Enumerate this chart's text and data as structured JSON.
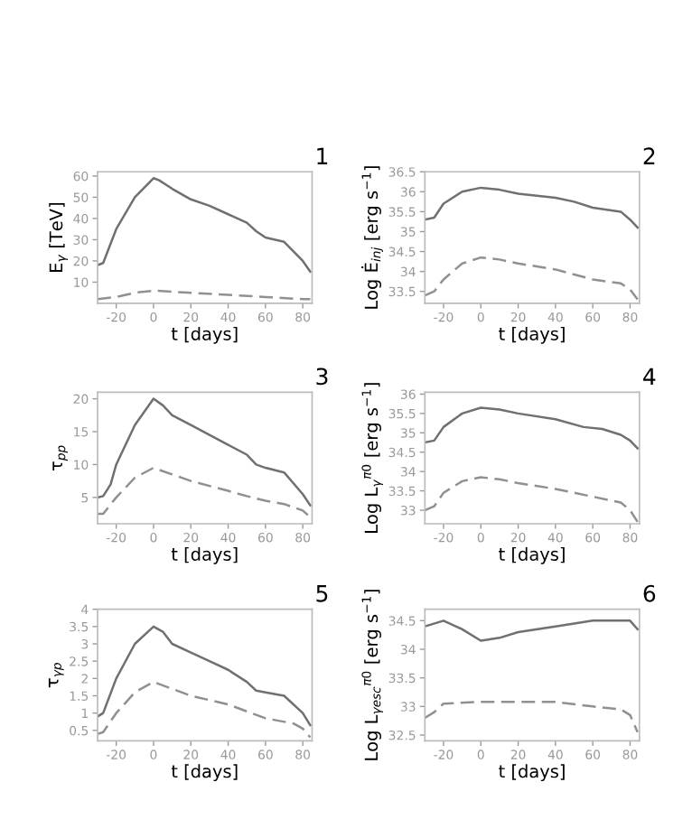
{
  "chart_data": [
    {
      "type": "line",
      "title": "1",
      "xlabel": "t [days]",
      "ylabel": "E$_{γ}$ [TeV]",
      "xlim": [
        -30,
        85
      ],
      "xticks": [
        -20,
        0,
        20,
        40,
        60,
        80
      ],
      "ylim": [
        0,
        62
      ],
      "yticks": [
        10,
        20,
        30,
        40,
        50,
        60
      ],
      "grid": false,
      "legend": false,
      "series": [
        {
          "color": "#707070",
          "line_style": "solid",
          "x": [
            -30,
            -27,
            -20,
            -10,
            0,
            3,
            10,
            20,
            30,
            40,
            50,
            55,
            60,
            70,
            80,
            84
          ],
          "values": [
            18,
            19,
            35,
            50,
            59,
            58,
            54,
            49,
            46,
            42,
            38,
            34,
            31,
            29,
            20,
            15
          ]
        },
        {
          "color": "#909090",
          "line_style": "dashed",
          "x": [
            -30,
            -20,
            -10,
            0,
            20,
            40,
            60,
            80,
            84
          ],
          "values": [
            2,
            3,
            5,
            6,
            5,
            4,
            3,
            2,
            2
          ]
        }
      ]
    },
    {
      "type": "line",
      "title": "2",
      "xlabel": "t [days]",
      "ylabel": "Log Ė$_{inj}$ [erg s$^{−1}$]",
      "xlim": [
        -30,
        85
      ],
      "xticks": [
        -20,
        0,
        20,
        40,
        60,
        80
      ],
      "ylim": [
        33.2,
        36.5
      ],
      "yticks": [
        33.5,
        34,
        34.5,
        35,
        35.5,
        36,
        36.5
      ],
      "grid": false,
      "legend": false,
      "series": [
        {
          "color": "#707070",
          "line_style": "solid",
          "x": [
            -30,
            -25,
            -20,
            -10,
            0,
            10,
            20,
            40,
            50,
            60,
            75,
            80,
            84
          ],
          "values": [
            35.3,
            35.35,
            35.7,
            36.0,
            36.1,
            36.05,
            35.95,
            35.85,
            35.75,
            35.6,
            35.5,
            35.3,
            35.1
          ]
        },
        {
          "color": "#909090",
          "line_style": "dashed",
          "x": [
            -30,
            -25,
            -20,
            -10,
            0,
            10,
            20,
            40,
            60,
            75,
            80,
            84
          ],
          "values": [
            33.4,
            33.5,
            33.8,
            34.2,
            34.35,
            34.3,
            34.2,
            34.05,
            33.8,
            33.7,
            33.55,
            33.3
          ]
        }
      ]
    },
    {
      "type": "line",
      "title": "3",
      "xlabel": "t [days]",
      "ylabel": "τ$_{pp}$",
      "xlim": [
        -30,
        85
      ],
      "xticks": [
        -20,
        0,
        20,
        40,
        60,
        80
      ],
      "ylim": [
        1,
        21
      ],
      "yticks": [
        5,
        10,
        15,
        20
      ],
      "grid": false,
      "legend": false,
      "series": [
        {
          "color": "#707070",
          "line_style": "solid",
          "x": [
            -30,
            -27,
            -23,
            -20,
            -10,
            0,
            5,
            10,
            20,
            30,
            40,
            50,
            55,
            60,
            70,
            80,
            84
          ],
          "values": [
            5,
            5.2,
            7,
            10,
            16,
            20,
            19,
            17.5,
            16,
            14.5,
            13,
            11.5,
            10,
            9.5,
            8.8,
            5.5,
            3.8
          ]
        },
        {
          "color": "#909090",
          "line_style": "dashed",
          "x": [
            -30,
            -27,
            -20,
            -10,
            0,
            10,
            20,
            40,
            50,
            60,
            70,
            80,
            84
          ],
          "values": [
            2.5,
            2.5,
            5,
            8,
            9.5,
            8.5,
            7.5,
            6,
            5.2,
            4.5,
            4,
            3,
            2
          ]
        }
      ]
    },
    {
      "type": "line",
      "title": "4",
      "xlabel": "t [days]",
      "ylabel": "Log L$_{γ}$$^{π0}$ [erg s$^{−1}$]",
      "xlim": [
        -30,
        85
      ],
      "xticks": [
        -20,
        0,
        20,
        40,
        60,
        80
      ],
      "ylim": [
        32.65,
        36.05
      ],
      "yticks": [
        33,
        33.5,
        34,
        34.5,
        35,
        35.5,
        36
      ],
      "grid": false,
      "legend": false,
      "series": [
        {
          "color": "#707070",
          "line_style": "solid",
          "x": [
            -30,
            -25,
            -20,
            -10,
            0,
            10,
            20,
            40,
            55,
            65,
            75,
            80,
            84
          ],
          "values": [
            34.75,
            34.8,
            35.15,
            35.5,
            35.65,
            35.6,
            35.5,
            35.35,
            35.15,
            35.1,
            34.95,
            34.8,
            34.6
          ]
        },
        {
          "color": "#909090",
          "line_style": "dashed",
          "x": [
            -30,
            -25,
            -20,
            -10,
            0,
            10,
            20,
            40,
            60,
            75,
            80,
            84
          ],
          "values": [
            33.0,
            33.1,
            33.45,
            33.75,
            33.85,
            33.8,
            33.7,
            33.55,
            33.35,
            33.2,
            33.0,
            32.7
          ]
        }
      ]
    },
    {
      "type": "line",
      "title": "5",
      "xlabel": "t [days]",
      "ylabel": "τ$_{γp}$",
      "xlim": [
        -30,
        85
      ],
      "xticks": [
        -20,
        0,
        20,
        40,
        60,
        80
      ],
      "ylim": [
        0.2,
        4
      ],
      "yticks": [
        0.5,
        1,
        1.5,
        2,
        2.5,
        3,
        3.5,
        4
      ],
      "grid": false,
      "legend": false,
      "series": [
        {
          "color": "#707070",
          "line_style": "solid",
          "x": [
            -30,
            -27,
            -20,
            -10,
            0,
            5,
            10,
            20,
            30,
            40,
            50,
            55,
            60,
            70,
            80,
            84
          ],
          "values": [
            0.9,
            1.0,
            2.0,
            3.0,
            3.5,
            3.35,
            3.0,
            2.75,
            2.5,
            2.25,
            1.9,
            1.65,
            1.6,
            1.5,
            1.0,
            0.65
          ]
        },
        {
          "color": "#909090",
          "line_style": "dashed",
          "x": [
            -30,
            -27,
            -20,
            -10,
            0,
            10,
            20,
            40,
            50,
            60,
            75,
            80,
            84
          ],
          "values": [
            0.4,
            0.45,
            1.0,
            1.6,
            1.9,
            1.7,
            1.5,
            1.25,
            1.05,
            0.85,
            0.7,
            0.55,
            0.3
          ]
        }
      ]
    },
    {
      "type": "line",
      "title": "6",
      "xlabel": "t [days]",
      "ylabel": "Log L$_{γesc}$$^{π0}$ [erg s$^{−1}$]",
      "xlim": [
        -30,
        85
      ],
      "xticks": [
        -20,
        0,
        20,
        40,
        60,
        80
      ],
      "ylim": [
        32.4,
        34.7
      ],
      "yticks": [
        32.5,
        33,
        33.5,
        34,
        34.5
      ],
      "grid": false,
      "legend": false,
      "series": [
        {
          "color": "#707070",
          "line_style": "solid",
          "x": [
            -30,
            -20,
            -10,
            0,
            10,
            20,
            40,
            60,
            75,
            80,
            84
          ],
          "values": [
            34.4,
            34.5,
            34.35,
            34.15,
            34.2,
            34.3,
            34.4,
            34.5,
            34.5,
            34.5,
            34.35
          ]
        },
        {
          "color": "#909090",
          "line_style": "dashed",
          "x": [
            -30,
            -25,
            -20,
            0,
            40,
            60,
            75,
            80,
            84
          ],
          "values": [
            32.8,
            32.9,
            33.05,
            33.08,
            33.08,
            33.0,
            32.95,
            32.85,
            32.55
          ]
        }
      ]
    }
  ]
}
